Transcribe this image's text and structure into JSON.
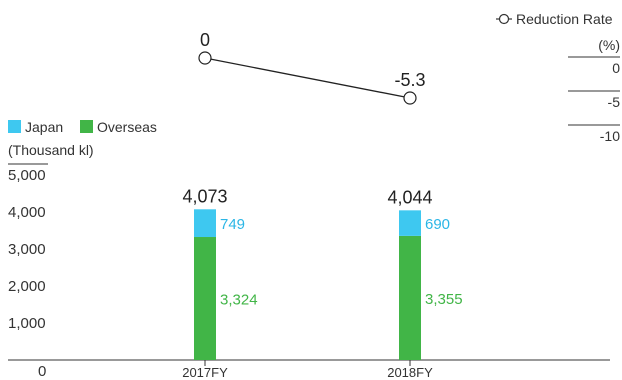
{
  "chart_data": {
    "type": "bar",
    "categories": [
      "2017FY",
      "2018FY"
    ],
    "series": [
      {
        "name": "Japan",
        "values": [
          749,
          690
        ],
        "color": "#3ec8f0"
      },
      {
        "name": "Overseas",
        "values": [
          3324,
          3355
        ],
        "color": "#41b547"
      }
    ],
    "totals": [
      4073,
      4044
    ],
    "ylabel": "(Thousand kl)",
    "ylim": [
      0,
      5000
    ],
    "yticks": [
      0,
      1000,
      2000,
      3000,
      4000,
      5000
    ],
    "ytick_labels": [
      "0",
      "1,000",
      "2,000",
      "3,000",
      "4,000",
      "5,000"
    ],
    "value_labels": {
      "Japan": [
        "749",
        "690"
      ],
      "Overseas": [
        "3,324",
        "3,355"
      ],
      "totals": [
        "4,073",
        "4,044"
      ]
    },
    "line_series": {
      "name": "Reduction Rate",
      "unit": "(%)",
      "values": [
        0,
        -5.3
      ],
      "labels": [
        "0",
        "-5.3"
      ],
      "ylim": [
        -10,
        0
      ],
      "yticks": [
        0,
        -5,
        -10
      ],
      "ytick_labels": [
        "0",
        "-5",
        "-10"
      ]
    },
    "legend": {
      "position": "top-left",
      "line_position": "top-right"
    },
    "grid": false
  }
}
